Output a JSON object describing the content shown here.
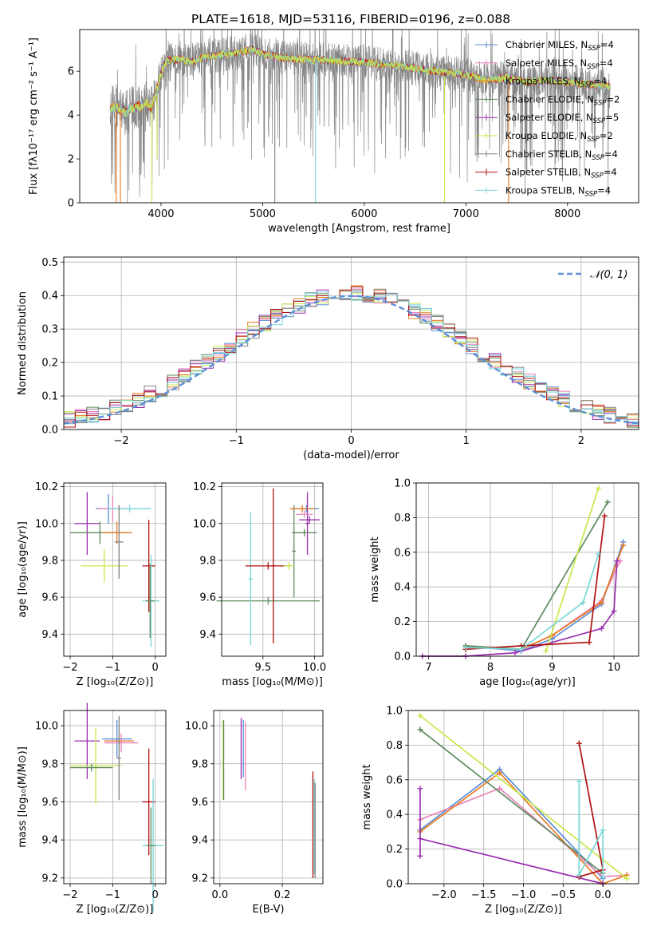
{
  "title": "PLATE=1618, MJD=53116, FIBERID=0196, z=0.088",
  "colors": {
    "chabrier_miles": "#5b8fd6",
    "salpeter_miles": "#e884b8",
    "kroupa_miles": "#e87a24",
    "chabrier_elodie": "#5f8a5f",
    "salpeter_elodie": "#9a2fae",
    "kroupa_elodie": "#c8e84a",
    "chabrier_stelib": "#808080",
    "salpeter_stelib": "#b01010",
    "kroupa_stelib": "#7ad6d6",
    "normal": "#5b8fd6"
  },
  "chart_data": [
    {
      "id": "spectrum",
      "type": "line",
      "xlabel": "wavelength [Angstrom, rest frame]",
      "ylabel": "Flux [fλ10⁻¹⁷ erg cm⁻² s⁻¹ A⁻¹]",
      "xlim": [
        3200,
        8700
      ],
      "ylim": [
        0,
        7.9
      ],
      "xticks": [
        4000,
        5000,
        6000,
        7000,
        8000
      ],
      "yticks": [
        0,
        2,
        4,
        6
      ],
      "grid": false,
      "legend_position": "right",
      "legend": [
        {
          "name": "Chabrier MILES, N",
          "sub": "SSP",
          "tail": "=4",
          "color": "#5b8fd6"
        },
        {
          "name": "Salpeter MILES, N",
          "sub": "SSP",
          "tail": "=4",
          "color": "#e884b8"
        },
        {
          "name": "Kroupa MILES, N",
          "sub": "SSP",
          "tail": "=4",
          "color": "#e87a24"
        },
        {
          "name": "Chabrier ELODIE, N",
          "sub": "SSP",
          "tail": "=2",
          "color": "#5f8a5f"
        },
        {
          "name": "Salpeter ELODIE, N",
          "sub": "SSP",
          "tail": "=5",
          "color": "#9a2fae"
        },
        {
          "name": "Kroupa ELODIE, N",
          "sub": "SSP",
          "tail": "=2",
          "color": "#c8e84a"
        },
        {
          "name": "Chabrier STELIB, N",
          "sub": "SSP",
          "tail": "=4",
          "color": "#808080"
        },
        {
          "name": "Salpeter STELIB, N",
          "sub": "SSP",
          "tail": "=4",
          "color": "#b01010"
        },
        {
          "name": "Kroupa STELIB, N",
          "sub": "SSP",
          "tail": "=4",
          "color": "#7ad6d6"
        }
      ],
      "continuum": [
        [
          3500,
          4.3
        ],
        [
          3550,
          4.4
        ],
        [
          3650,
          4.1
        ],
        [
          3700,
          4.3
        ],
        [
          3800,
          4.4
        ],
        [
          3850,
          4.6
        ],
        [
          3900,
          4.3
        ],
        [
          3950,
          5.0
        ],
        [
          4000,
          5.9
        ],
        [
          4050,
          6.4
        ],
        [
          4100,
          6.5
        ],
        [
          4200,
          6.55
        ],
        [
          4300,
          6.4
        ],
        [
          4400,
          6.6
        ],
        [
          4500,
          6.7
        ],
        [
          4700,
          6.8
        ],
        [
          4900,
          7.0
        ],
        [
          5000,
          6.8
        ],
        [
          5200,
          6.6
        ],
        [
          5400,
          6.55
        ],
        [
          5600,
          6.5
        ],
        [
          5800,
          6.45
        ],
        [
          6000,
          6.4
        ],
        [
          6200,
          6.3
        ],
        [
          6400,
          6.2
        ],
        [
          6600,
          6.05
        ],
        [
          6800,
          5.95
        ],
        [
          7000,
          5.85
        ],
        [
          7200,
          5.6
        ],
        [
          7400,
          5.7
        ],
        [
          7600,
          5.5
        ],
        [
          7800,
          5.6
        ],
        [
          8000,
          5.5
        ],
        [
          8200,
          5.4
        ],
        [
          8400,
          5.3
        ]
      ],
      "dips": [
        {
          "x": 3560,
          "y": 0.0,
          "color": "#e87a24"
        },
        {
          "x": 3600,
          "y": 0.0,
          "color": "#e87a24"
        },
        {
          "x": 3910,
          "y": 0.0,
          "color": "#c8e84a"
        },
        {
          "x": 3960,
          "y": 2.0,
          "color": "#c8e84a"
        },
        {
          "x": 5120,
          "y": 0.0,
          "color": "#808080"
        },
        {
          "x": 5520,
          "y": 0.0,
          "color": "#7ad6d6"
        },
        {
          "x": 6790,
          "y": 0.0,
          "color": "#c8e84a"
        },
        {
          "x": 7420,
          "y": 0.0,
          "color": "#e87a24"
        }
      ]
    },
    {
      "id": "residuals",
      "type": "histogram",
      "xlabel": "(data-model)/error",
      "ylabel": "Normed distribution",
      "xlim": [
        -2.5,
        2.5
      ],
      "ylim": [
        0,
        0.515
      ],
      "xticks": [
        -2,
        -1,
        0,
        1,
        2
      ],
      "yticks": [
        0.0,
        0.1,
        0.2,
        0.3,
        0.4,
        0.5
      ],
      "grid": true,
      "legend_position": "top-right",
      "legend": [
        {
          "name": "𝒩(0, 1)",
          "color": "#5b8fd6"
        }
      ],
      "bin_width": 0.1
    },
    {
      "id": "age-vs-Z",
      "type": "scatter",
      "xlabel": "Z [log₁₀(Z/Z⊙)]",
      "ylabel": "age  [log₁₀(age/yr)]",
      "xlim": [
        -2.15,
        0.25
      ],
      "ylim": [
        9.28,
        10.22
      ],
      "xticks": [
        -2,
        -1,
        0
      ],
      "yticks": [
        9.4,
        9.6,
        9.8,
        10.0,
        10.2
      ],
      "grid": true,
      "points": [
        {
          "x": -1.6,
          "xerr": 0.3,
          "y": 10.0,
          "yerr": 0.17,
          "color": "#9a2fae"
        },
        {
          "x": -1.2,
          "xerr": 0.55,
          "y": 9.77,
          "yerr": 0.09,
          "color": "#c8e84a"
        },
        {
          "x": -1.3,
          "xerr": 0.7,
          "y": 9.95,
          "yerr": 0.06,
          "color": "#5f8a5f"
        },
        {
          "x": -1.1,
          "xerr": 0.3,
          "y": 10.08,
          "yerr": 0.08,
          "color": "#5b8fd6"
        },
        {
          "x": -1.0,
          "xerr": 0.35,
          "y": 10.08,
          "yerr": 0.07,
          "color": "#e884b8"
        },
        {
          "x": -0.9,
          "xerr": 0.35,
          "y": 9.95,
          "yerr": 0.06,
          "color": "#e87a24"
        },
        {
          "x": -0.6,
          "xerr": 0.5,
          "y": 10.08,
          "yerr": 0.02,
          "color": "#7ad6d6"
        },
        {
          "x": -0.85,
          "xerr": 0.1,
          "y": 9.9,
          "yerr": 0.2,
          "color": "#808080"
        },
        {
          "x": -0.15,
          "xerr": 0.15,
          "y": 9.77,
          "yerr": 0.25,
          "color": "#b01010"
        },
        {
          "x": -0.1,
          "xerr": 0.2,
          "y": 9.58,
          "yerr": 0.25,
          "color": "#7ad6d6"
        },
        {
          "x": -0.12,
          "xerr": 0.1,
          "y": 9.58,
          "yerr": 0.2,
          "color": "#5f8a5f"
        }
      ]
    },
    {
      "id": "age-vs-mass",
      "type": "scatter",
      "xlabel": "mass [log₁₀(M/M⊙)]",
      "ylabel": "",
      "xlim": [
        9.1,
        10.08
      ],
      "ylim": [
        9.28,
        10.22
      ],
      "xticks": [
        9.5,
        10.0
      ],
      "yticks": [
        9.4,
        9.6,
        9.8,
        10.0,
        10.2
      ],
      "grid": true,
      "points": [
        {
          "x": 9.55,
          "xerr": 0.5,
          "y": 9.58,
          "yerr": 0.02,
          "color": "#5f8a5f"
        },
        {
          "x": 9.38,
          "xerr": 0.02,
          "y": 9.7,
          "yerr": 0.36,
          "color": "#7ad6d6"
        },
        {
          "x": 9.6,
          "xerr": 0.02,
          "y": 9.77,
          "yerr": 0.42,
          "color": "#b01010"
        },
        {
          "x": 9.55,
          "xerr": 0.22,
          "y": 9.77,
          "yerr": 0.02,
          "color": "#b01010"
        },
        {
          "x": 9.8,
          "xerr": 0.02,
          "y": 9.85,
          "yerr": 0.25,
          "color": "#5f8a5f"
        },
        {
          "x": 9.75,
          "xerr": 0.05,
          "y": 9.77,
          "yerr": 0.02,
          "color": "#c8e84a"
        },
        {
          "x": 9.9,
          "xerr": 0.12,
          "y": 9.95,
          "yerr": 0.02,
          "color": "#5f8a5f"
        },
        {
          "x": 9.93,
          "xerr": 0.02,
          "y": 10.0,
          "yerr": 0.17,
          "color": "#9a2fae"
        },
        {
          "x": 9.9,
          "xerr": 0.08,
          "y": 10.05,
          "yerr": 0.02,
          "color": "#e884b8"
        },
        {
          "x": 9.92,
          "xerr": 0.12,
          "y": 10.08,
          "yerr": 0.02,
          "color": "#5b8fd6"
        },
        {
          "x": 9.88,
          "xerr": 0.12,
          "y": 10.08,
          "yerr": 0.02,
          "color": "#e87a24"
        },
        {
          "x": 9.95,
          "xerr": 0.1,
          "y": 10.02,
          "yerr": 0.02,
          "color": "#9a2fae"
        }
      ]
    },
    {
      "id": "massweight-vs-age",
      "type": "line",
      "xlabel": "age  [log₁₀(age/yr)]",
      "ylabel": "mass weight",
      "xlim": [
        6.8,
        10.4
      ],
      "ylim": [
        0,
        1.0
      ],
      "xticks": [
        7,
        8,
        9,
        10
      ],
      "yticks": [
        0.0,
        0.2,
        0.4,
        0.6,
        0.8,
        1.0
      ],
      "grid": true,
      "series": [
        {
          "color": "#5b8fd6",
          "points": [
            [
              7.6,
              0.06
            ],
            [
              8.5,
              0.03
            ],
            [
              9.0,
              0.1
            ],
            [
              9.8,
              0.3
            ],
            [
              10.15,
              0.66
            ]
          ]
        },
        {
          "color": "#e884b8",
          "points": [
            [
              7.6,
              0.06
            ],
            [
              8.5,
              0.04
            ],
            [
              9.0,
              0.12
            ],
            [
              9.8,
              0.32
            ],
            [
              10.1,
              0.55
            ]
          ]
        },
        {
          "color": "#e87a24",
          "points": [
            [
              7.6,
              0.06
            ],
            [
              8.5,
              0.04
            ],
            [
              9.0,
              0.12
            ],
            [
              9.8,
              0.31
            ],
            [
              10.15,
              0.64
            ]
          ]
        },
        {
          "color": "#5f8a5f",
          "points": [
            [
              7.6,
              0.06
            ],
            [
              8.5,
              0.04
            ],
            [
              9.9,
              0.89
            ]
          ]
        },
        {
          "color": "#9a2fae",
          "points": [
            [
              6.9,
              0.0
            ],
            [
              7.6,
              0.0
            ],
            [
              8.4,
              0.02
            ],
            [
              9.8,
              0.16
            ],
            [
              10.0,
              0.26
            ],
            [
              10.05,
              0.55
            ]
          ]
        },
        {
          "color": "#c8e84a",
          "points": [
            [
              8.9,
              0.03
            ],
            [
              9.75,
              0.97
            ]
          ]
        },
        {
          "color": "#b01010",
          "points": [
            [
              7.6,
              0.04
            ],
            [
              8.5,
              0.06
            ],
            [
              9.6,
              0.08
            ],
            [
              9.85,
              0.81
            ]
          ]
        },
        {
          "color": "#7ad6d6",
          "points": [
            [
              7.6,
              0.05
            ],
            [
              8.5,
              0.04
            ],
            [
              9.5,
              0.31
            ],
            [
              9.75,
              0.59
            ]
          ]
        }
      ]
    },
    {
      "id": "mass-vs-Z",
      "type": "scatter",
      "xlabel": "Z [log₁₀(Z/Z⊙)]",
      "ylabel": "mass [log₁₀(M/M⊙)]",
      "xlim": [
        -2.15,
        0.25
      ],
      "ylim": [
        9.17,
        10.08
      ],
      "xticks": [
        -2,
        -1,
        0
      ],
      "yticks": [
        9.2,
        9.4,
        9.6,
        9.8,
        10.0
      ],
      "grid": true,
      "points": [
        {
          "x": -1.6,
          "xerr": 0.3,
          "y": 9.92,
          "yerr": 0.2,
          "color": "#9a2fae"
        },
        {
          "x": -1.4,
          "xerr": 0.6,
          "y": 9.79,
          "yerr": 0.2,
          "color": "#c8e84a"
        },
        {
          "x": -1.5,
          "xerr": 0.5,
          "y": 9.78,
          "yerr": 0.02,
          "color": "#5f8a5f"
        },
        {
          "x": -0.9,
          "xerr": 0.35,
          "y": 9.93,
          "yerr": 0.1,
          "color": "#5b8fd6"
        },
        {
          "x": -0.8,
          "xerr": 0.4,
          "y": 9.91,
          "yerr": 0.05,
          "color": "#e884b8"
        },
        {
          "x": -0.85,
          "xerr": 0.35,
          "y": 9.92,
          "yerr": 0.02,
          "color": "#e87a24"
        },
        {
          "x": -0.85,
          "xerr": 0.05,
          "y": 9.83,
          "yerr": 0.22,
          "color": "#808080"
        },
        {
          "x": -0.15,
          "xerr": 0.15,
          "y": 9.6,
          "yerr": 0.28,
          "color": "#b01010"
        },
        {
          "x": -0.05,
          "xerr": 0.25,
          "y": 9.37,
          "yerr": 0.35,
          "color": "#7ad6d6"
        },
        {
          "x": -0.1,
          "xerr": 0.1,
          "y": 9.37,
          "yerr": 0.2,
          "color": "#5f8a5f"
        }
      ]
    },
    {
      "id": "mass-vs-EBV",
      "type": "scatter",
      "xlabel": "E(B-V)",
      "ylabel": "",
      "xlim": [
        -0.02,
        0.33
      ],
      "ylim": [
        9.17,
        10.08
      ],
      "xticks": [
        0.0,
        0.2
      ],
      "yticks": [
        9.2,
        9.4,
        9.6,
        9.8,
        10.0
      ],
      "grid": true,
      "points": [
        {
          "x": 0.01,
          "xerr": 0,
          "y": 9.82,
          "yerr": 0.21,
          "color": "#c8e84a"
        },
        {
          "x": 0.012,
          "xerr": 0,
          "y": 9.82,
          "yerr": 0.21,
          "color": "#5f8a5f"
        },
        {
          "x": 0.068,
          "xerr": 0,
          "y": 9.88,
          "yerr": 0.16,
          "color": "#9a2fae"
        },
        {
          "x": 0.075,
          "xerr": 0,
          "y": 9.88,
          "yerr": 0.15,
          "color": "#5b8fd6"
        },
        {
          "x": 0.082,
          "xerr": 0,
          "y": 9.84,
          "yerr": 0.18,
          "color": "#e884b8"
        },
        {
          "x": 0.298,
          "xerr": 0,
          "y": 9.48,
          "yerr": 0.28,
          "color": "#b01010"
        },
        {
          "x": 0.302,
          "xerr": 0,
          "y": 9.47,
          "yerr": 0.25,
          "color": "#7ad6d6"
        },
        {
          "x": 0.305,
          "xerr": 0,
          "y": 9.45,
          "yerr": 0.25,
          "color": "#808080"
        }
      ]
    },
    {
      "id": "massweight-vs-Z",
      "type": "line",
      "xlabel": "Z [log₁₀(Z/Z⊙)]",
      "ylabel": "mass weight",
      "xlim": [
        -2.45,
        0.45
      ],
      "ylim": [
        0,
        1.0
      ],
      "xticks": [
        -2.0,
        -1.5,
        -1.0,
        -0.5,
        0.0
      ],
      "yticks": [
        0.0,
        0.2,
        0.4,
        0.6,
        0.8,
        1.0
      ],
      "grid": true,
      "series": [
        {
          "color": "#5b8fd6",
          "points": [
            [
              -2.3,
              0.31
            ],
            [
              -1.3,
              0.66
            ],
            [
              0.0,
              0.03
            ]
          ]
        },
        {
          "color": "#e884b8",
          "points": [
            [
              -2.3,
              0.37
            ],
            [
              -1.3,
              0.55
            ],
            [
              0.0,
              0.04
            ],
            [
              0.3,
              0.05
            ]
          ]
        },
        {
          "color": "#e87a24",
          "points": [
            [
              -2.3,
              0.3
            ],
            [
              -1.3,
              0.64
            ],
            [
              0.0,
              0.0
            ],
            [
              0.3,
              0.05
            ]
          ]
        },
        {
          "color": "#5f8a5f",
          "points": [
            [
              -2.3,
              0.89
            ],
            [
              0.0,
              0.06
            ]
          ]
        },
        {
          "color": "#9a2fae",
          "points": [
            [
              -2.3,
              0.55
            ],
            [
              -2.3,
              0.16
            ],
            [
              -2.3,
              0.26
            ],
            [
              0.0,
              0.0
            ]
          ]
        },
        {
          "color": "#c8e84a",
          "points": [
            [
              -2.3,
              0.97
            ],
            [
              0.3,
              0.03
            ]
          ]
        },
        {
          "color": "#b01010",
          "points": [
            [
              -0.3,
              0.81
            ],
            [
              0.0,
              0.08
            ],
            [
              -0.3,
              0.04
            ]
          ]
        },
        {
          "color": "#7ad6d6",
          "points": [
            [
              -0.3,
              0.59
            ],
            [
              -0.3,
              0.05
            ],
            [
              0.0,
              0.31
            ],
            [
              0.0,
              0.04
            ]
          ]
        }
      ]
    }
  ]
}
